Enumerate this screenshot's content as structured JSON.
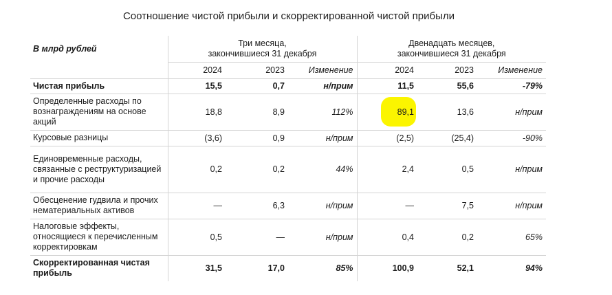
{
  "title": "Соотношение чистой прибыли и скорректированной чистой прибыли",
  "unit_label": "В млрд рублей",
  "groups": [
    {
      "line1": "Три месяца,",
      "line2": "закончившиеся 31 декабря"
    },
    {
      "line1": "Двенадцать месяцев,",
      "line2": "закончившиеся 31 декабря"
    }
  ],
  "columns": [
    "2024",
    "2023",
    "Изменение",
    "2024",
    "2023",
    "Изменение"
  ],
  "rows": [
    {
      "label": "Чистая прибыль",
      "values": [
        "15,5",
        "0,7",
        "н/прим",
        "11,5",
        "55,6",
        "-79%"
      ]
    },
    {
      "label": "Определенные расходы по вознаграждениям на основе акций",
      "values": [
        "18,8",
        "8,9",
        "112%",
        "89,1",
        "13,6",
        "н/прим"
      ]
    },
    {
      "label": "Курсовые разницы",
      "values": [
        "(3,6)",
        "0,9",
        "н/прим",
        "(2,5)",
        "(25,4)",
        "-90%"
      ]
    },
    {
      "label": "Единовременные расходы, связанные с реструктуризацией и прочие расходы",
      "values": [
        "0,2",
        "0,2",
        "44%",
        "2,4",
        "0,5",
        "н/прим"
      ]
    },
    {
      "label": "Обесценение гудвила и прочих нематериальных активов",
      "values": [
        "—",
        "6,3",
        "н/прим",
        "—",
        "7,5",
        "н/прим"
      ]
    },
    {
      "label": "Налоговые эффекты, относящиеся к перечисленным корректировкам",
      "values": [
        "0,5",
        "—",
        "н/прим",
        "0,4",
        "0,2",
        "65%"
      ]
    },
    {
      "label": "Скорректированная чистая прибыль",
      "values": [
        "31,5",
        "17,0",
        "85%",
        "100,9",
        "52,1",
        "94%"
      ]
    }
  ],
  "highlight_color": "#fbf500"
}
